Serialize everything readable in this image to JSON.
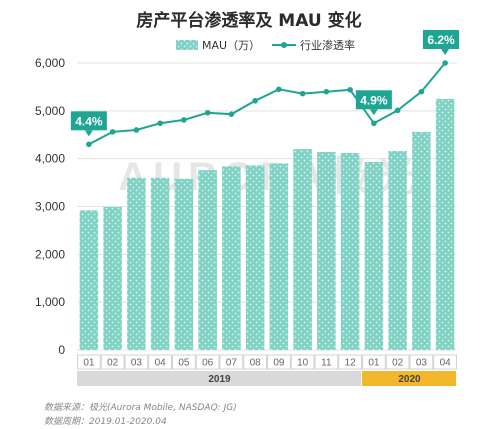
{
  "chart_data": {
    "type": "bar",
    "title": "房产平台渗透率及 MAU 变化",
    "categories": [
      "01",
      "02",
      "03",
      "04",
      "05",
      "06",
      "07",
      "08",
      "09",
      "10",
      "11",
      "12",
      "01",
      "02",
      "03",
      "04"
    ],
    "groups": [
      {
        "label": "2019",
        "start": 0,
        "end": 11,
        "color": "#d9d9d9"
      },
      {
        "label": "2020",
        "start": 12,
        "end": 15,
        "color": "#f3b72b"
      }
    ],
    "ylim": [
      0,
      6000
    ],
    "yticks": [
      0,
      1000,
      2000,
      3000,
      4000,
      5000,
      6000
    ],
    "ytick_labels": [
      "0",
      "1,000",
      "2,000",
      "3,000",
      "4,000",
      "5,000",
      "6,000"
    ],
    "grid": true,
    "legend_position": "top",
    "series": [
      {
        "name": "MAU（万）",
        "type": "bar",
        "color": "#7fd2c4",
        "values": [
          2920,
          2990,
          3600,
          3600,
          3580,
          3760,
          3840,
          3860,
          3900,
          4200,
          4140,
          4120,
          3930,
          4160,
          4560,
          5250
        ]
      },
      {
        "name": "行业渗透率",
        "type": "line",
        "color": "#1fa593",
        "plot_values": [
          4300,
          4560,
          4600,
          4740,
          4810,
          4960,
          4930,
          5210,
          5450,
          5360,
          5400,
          5440,
          4740,
          5010,
          5400,
          6000
        ],
        "values_pct": [
          4.4,
          null,
          null,
          null,
          null,
          null,
          null,
          null,
          null,
          null,
          null,
          null,
          4.9,
          null,
          null,
          6.2
        ]
      }
    ],
    "annotations": [
      {
        "point": 0,
        "label": "4.4%"
      },
      {
        "point": 12,
        "label": "4.9%"
      },
      {
        "point": 15,
        "label": "6.2%"
      }
    ],
    "watermark": "AURORA极光",
    "source": "数据来源：极光(Aurora Mobile, NASDAQ: JG)",
    "period": "数据周期：2019.01-2020.04"
  }
}
